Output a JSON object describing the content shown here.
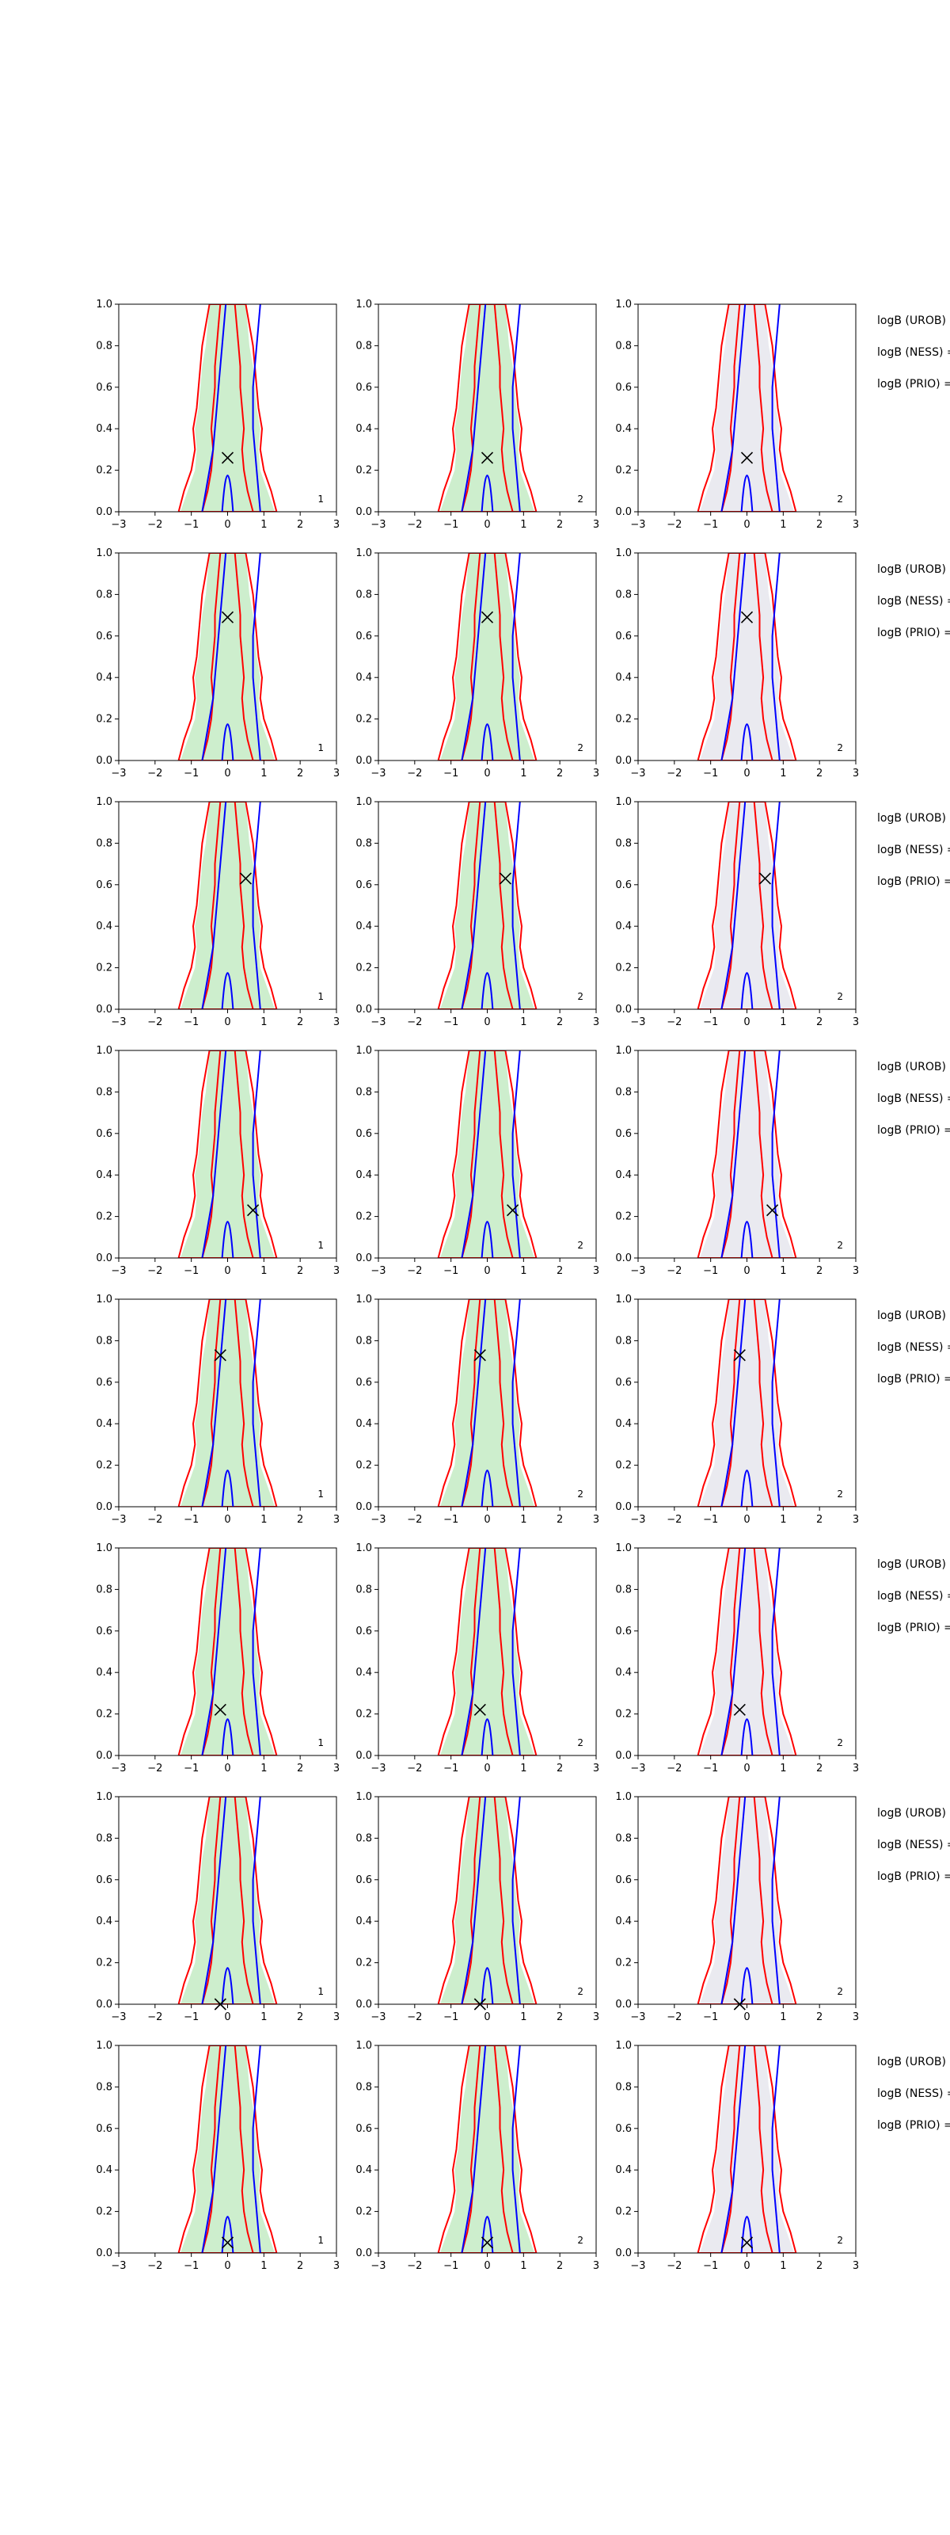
{
  "chart_data": {
    "type": "contour",
    "xlim": [
      -3,
      3
    ],
    "ylim": [
      0.0,
      1.0
    ],
    "x_ticks": [
      "−3",
      "−2",
      "−1",
      "0",
      "1",
      "2",
      "3"
    ],
    "y_ticks": [
      "0.0",
      "0.2",
      "0.4",
      "0.6",
      "0.8",
      "1.0"
    ],
    "grid": false,
    "colors": {
      "red_contour": "#ff0000",
      "blue_contour": "#0000ff",
      "green_fill": "#c8ecc8",
      "grey_fill": "#e8e8ee",
      "marker": "#000000"
    },
    "side_labels": [
      "logB (UROB) =",
      "logB (NESS) =",
      "logB (PRIO) ="
    ],
    "corner_labels": [
      "1",
      "2",
      "2"
    ],
    "rows": [
      {
        "marker": [
          0.0,
          0.26
        ]
      },
      {
        "marker": [
          0.0,
          0.69
        ]
      },
      {
        "marker": [
          0.5,
          0.63
        ]
      },
      {
        "marker": [
          0.7,
          0.23
        ]
      },
      {
        "marker": [
          -0.2,
          0.73
        ]
      },
      {
        "marker": [
          -0.2,
          0.22
        ]
      },
      {
        "marker": [
          -0.2,
          0.0
        ]
      },
      {
        "marker": [
          0.0,
          0.05
        ]
      }
    ]
  }
}
